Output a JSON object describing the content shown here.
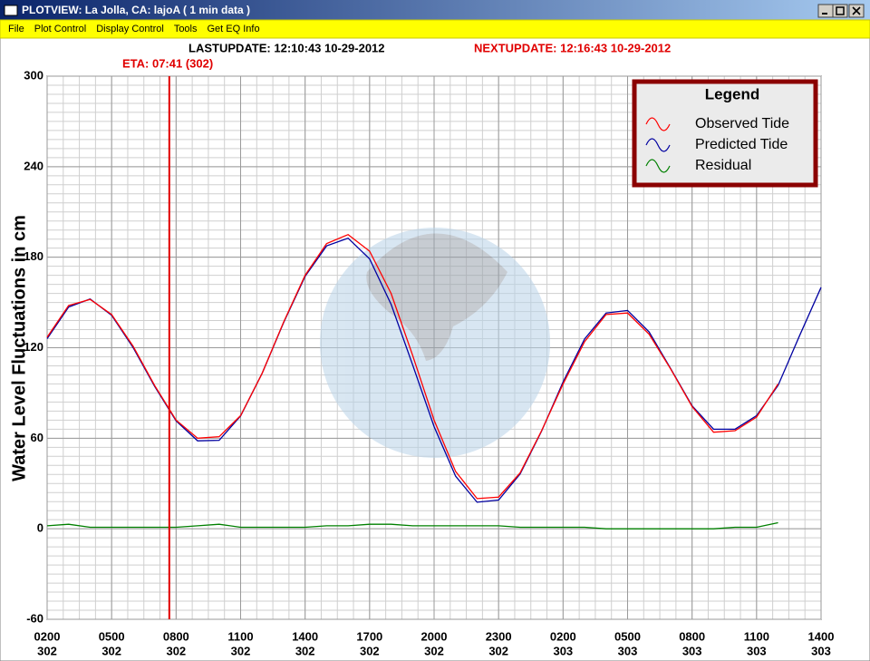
{
  "window": {
    "title": "PLOTVIEW:  La Jolla, CA: lajoA ( 1 min data )"
  },
  "menu": [
    "File",
    "Plot Control",
    "Display Control",
    "Tools",
    "Get EQ Info"
  ],
  "header": {
    "last_update": "LASTUPDATE: 12:10:43 10-29-2012",
    "next_update": "NEXTUPDATE: 12:16:43 10-29-2012",
    "eta": "ETA: 07:41 (302)"
  },
  "chart_data": {
    "type": "line",
    "ylabel": "Water Level Fluctuations in cm",
    "xlim": [
      0,
      36
    ],
    "ylim": [
      -60,
      300
    ],
    "yticks": [
      -60,
      0,
      60,
      120,
      180,
      240,
      300
    ],
    "xticks": [
      {
        "value": 0,
        "label": "0200",
        "day": "302"
      },
      {
        "value": 3,
        "label": "0500",
        "day": "302"
      },
      {
        "value": 6,
        "label": "0800",
        "day": "302"
      },
      {
        "value": 9,
        "label": "1100",
        "day": "302"
      },
      {
        "value": 12,
        "label": "1400",
        "day": "302"
      },
      {
        "value": 15,
        "label": "1700",
        "day": "302"
      },
      {
        "value": 18,
        "label": "2000",
        "day": "302"
      },
      {
        "value": 21,
        "label": "2300",
        "day": "302"
      },
      {
        "value": 24,
        "label": "0200",
        "day": "303"
      },
      {
        "value": 27,
        "label": "0500",
        "day": "303"
      },
      {
        "value": 30,
        "label": "0800",
        "day": "303"
      },
      {
        "value": 33,
        "label": "1100",
        "day": "303"
      },
      {
        "value": 36,
        "label": "1400",
        "day": "303"
      }
    ],
    "grid": true,
    "minor_step": {
      "x": 0.75,
      "y": 6
    },
    "eta_line": {
      "x": 5.683,
      "color": "#e00000"
    },
    "legend": {
      "title": "Legend",
      "position": "upper right"
    },
    "x": [
      0,
      1,
      2,
      3,
      4,
      5,
      6,
      7,
      8,
      9,
      10,
      11,
      12,
      13,
      14,
      15,
      16,
      17,
      18,
      19,
      20,
      21,
      22,
      23,
      24,
      25,
      26,
      27,
      28,
      29,
      30,
      31,
      32,
      33,
      34,
      35,
      36
    ],
    "series": [
      {
        "name": "Observed Tide",
        "color": "#ff0000",
        "values": [
          127,
          148,
          152,
          142,
          121,
          95,
          72,
          60,
          61,
          75,
          103,
          137,
          168,
          189,
          195,
          184,
          156,
          115,
          72,
          38,
          20,
          21,
          37,
          65,
          96,
          124,
          142,
          143,
          129,
          106,
          81,
          64,
          65,
          74,
          96,
          null,
          null
        ]
      },
      {
        "name": "Predicted Tide",
        "color": "#0000a0",
        "values": [
          126,
          147,
          152.3,
          141.5,
          120.1,
          94.4,
          71.5,
          58.3,
          58.6,
          74.8,
          103,
          136.6,
          167.3,
          187.5,
          192.6,
          178.9,
          148.8,
          108.7,
          67.7,
          34.9,
          17.6,
          19,
          36.3,
          64.7,
          97.3,
          125.8,
          143,
          144.7,
          130.5,
          106.3,
          81.5,
          66,
          66,
          75,
          95,
          128,
          160
        ]
      },
      {
        "name": "Residual",
        "color": "#008000",
        "values": [
          2,
          3,
          1,
          1,
          1,
          1,
          1,
          2,
          3,
          1,
          1,
          1,
          1,
          2,
          2,
          3,
          3,
          2,
          2,
          2,
          2,
          2,
          1,
          1,
          1,
          1,
          0,
          0,
          0,
          0,
          0,
          0,
          1,
          1,
          4,
          null,
          null
        ]
      }
    ]
  }
}
